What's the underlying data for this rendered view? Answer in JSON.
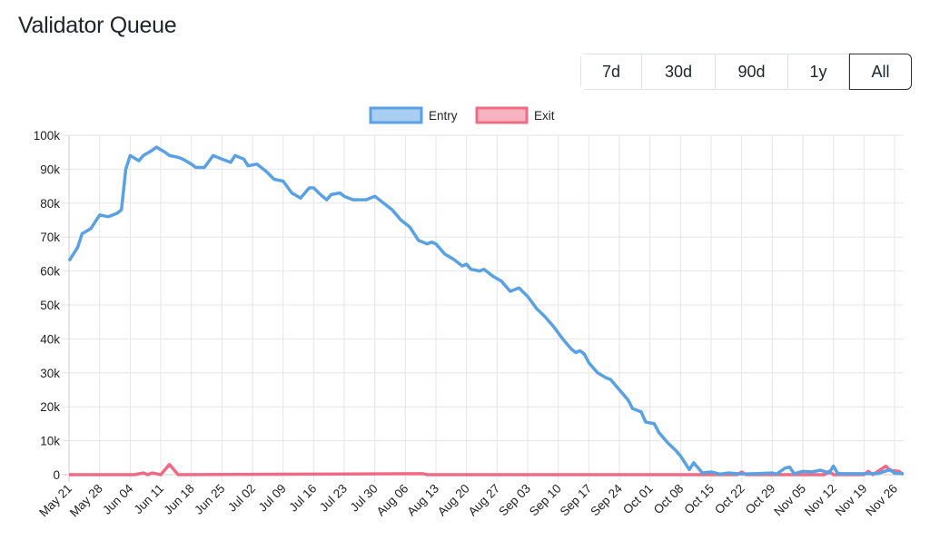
{
  "header": {
    "title": "Validator Queue"
  },
  "range_buttons": [
    {
      "label": "7d",
      "active": false
    },
    {
      "label": "30d",
      "active": false
    },
    {
      "label": "90d",
      "active": false
    },
    {
      "label": "1y",
      "active": false
    },
    {
      "label": "All",
      "active": true
    }
  ],
  "chart_data": {
    "type": "line",
    "title": "",
    "xlabel": "",
    "ylabel": "",
    "x_range": [
      "May 21",
      "Nov 28"
    ],
    "ylim": [
      0,
      100000
    ],
    "y_ticks": [
      "0",
      "10k",
      "20k",
      "30k",
      "40k",
      "50k",
      "60k",
      "70k",
      "80k",
      "90k",
      "100k"
    ],
    "x_ticks": [
      "May 21",
      "May 28",
      "Jun 04",
      "Jun 11",
      "Jun 18",
      "Jun 25",
      "Jul 02",
      "Jul 09",
      "Jul 16",
      "Jul 23",
      "Jul 30",
      "Aug 06",
      "Aug 13",
      "Aug 20",
      "Aug 27",
      "Sep 03",
      "Sep 10",
      "Sep 17",
      "Sep 24",
      "Oct 01",
      "Oct 08",
      "Oct 15",
      "Oct 22",
      "Oct 29",
      "Nov 05",
      "Nov 12",
      "Nov 19",
      "Nov 26"
    ],
    "grid": true,
    "legend_position": "top",
    "series": [
      {
        "name": "Entry",
        "color": "#5aa1e3",
        "fill": "#aacdf2",
        "x": [
          "May 21",
          "May 23",
          "May 24",
          "May 26",
          "May 28",
          "May 30",
          "Jun 01",
          "Jun 02",
          "Jun 03",
          "Jun 04",
          "Jun 06",
          "Jun 07",
          "Jun 09",
          "Jun 10",
          "Jun 12",
          "Jun 13",
          "Jun 15",
          "Jun 16",
          "Jun 18",
          "Jun 19",
          "Jun 21",
          "Jun 23",
          "Jun 25",
          "Jun 27",
          "Jun 28",
          "Jun 30",
          "Jul 01",
          "Jul 03",
          "Jul 05",
          "Jul 07",
          "Jul 09",
          "Jul 11",
          "Jul 13",
          "Jul 14",
          "Jul 15",
          "Jul 16",
          "Jul 18",
          "Jul 19",
          "Jul 20",
          "Jul 22",
          "Jul 23",
          "Jul 25",
          "Jul 28",
          "Jul 30",
          "Aug 01",
          "Aug 03",
          "Aug 05",
          "Aug 07",
          "Aug 09",
          "Aug 11",
          "Aug 12",
          "Aug 13",
          "Aug 15",
          "Aug 17",
          "Aug 19",
          "Aug 20",
          "Aug 21",
          "Aug 23",
          "Aug 24",
          "Aug 26",
          "Aug 28",
          "Aug 30",
          "Sep 01",
          "Sep 03",
          "Sep 05",
          "Sep 07",
          "Sep 09",
          "Sep 11",
          "Sep 13",
          "Sep 14",
          "Sep 15",
          "Sep 16",
          "Sep 17",
          "Sep 19",
          "Sep 21",
          "Sep 22",
          "Sep 24",
          "Sep 26",
          "Sep 27",
          "Sep 29",
          "Sep 30",
          "Oct 02",
          "Oct 03",
          "Oct 05",
          "Oct 07",
          "Oct 08",
          "Oct 10",
          "Oct 11",
          "Oct 13",
          "Oct 15",
          "Oct 17",
          "Oct 19",
          "Oct 22",
          "Oct 25",
          "Oct 29",
          "Oct 30",
          "Nov 01",
          "Nov 02",
          "Nov 03",
          "Nov 05",
          "Nov 07",
          "Nov 09",
          "Nov 11",
          "Nov 12",
          "Nov 13",
          "Nov 17",
          "Nov 22",
          "Nov 25",
          "Nov 26",
          "Nov 28"
        ],
        "y": [
          63000,
          67000,
          71000,
          72500,
          76500,
          76000,
          77000,
          78000,
          90000,
          94000,
          92500,
          94000,
          95500,
          96500,
          95000,
          94000,
          93500,
          93000,
          91500,
          90500,
          90500,
          94000,
          93000,
          92000,
          94000,
          93000,
          91000,
          91500,
          89500,
          87000,
          86500,
          83000,
          81500,
          83000,
          84500,
          84500,
          82000,
          81000,
          82500,
          83000,
          82000,
          81000,
          81000,
          82000,
          80000,
          78000,
          75000,
          73000,
          69000,
          68000,
          68500,
          68000,
          65000,
          63500,
          61500,
          62000,
          60500,
          60000,
          60500,
          58500,
          57000,
          54000,
          55000,
          52500,
          49000,
          46500,
          43500,
          40000,
          37000,
          36000,
          36500,
          35500,
          33000,
          30000,
          28500,
          28000,
          25000,
          22000,
          19500,
          18500,
          15500,
          15000,
          12500,
          9500,
          7000,
          5500,
          1500,
          3500,
          500,
          800,
          200,
          500,
          200,
          300,
          500,
          200,
          2000,
          2200,
          300,
          1000,
          800,
          1300,
          500,
          2500,
          300,
          300,
          300,
          1500,
          400,
          300
        ]
      },
      {
        "name": "Exit",
        "color": "#ef6b85",
        "fill": "#f6b3c0",
        "x": [
          "May 21",
          "Jun 05",
          "Jun 07",
          "Jun 08",
          "Jun 09",
          "Jun 11",
          "Jun 13",
          "Jun 15",
          "Aug 10",
          "Aug 11",
          "Oct 21",
          "Oct 22",
          "Oct 23",
          "Nov 10",
          "Nov 11",
          "Nov 12",
          "Nov 19",
          "Nov 20",
          "Nov 21",
          "Nov 24",
          "Nov 25",
          "Nov 27",
          "Nov 28"
        ],
        "y": [
          0,
          0,
          500,
          0,
          500,
          0,
          3000,
          0,
          300,
          0,
          0,
          800,
          0,
          0,
          1000,
          0,
          0,
          1000,
          0,
          2500,
          1200,
          1000,
          0
        ]
      }
    ]
  }
}
